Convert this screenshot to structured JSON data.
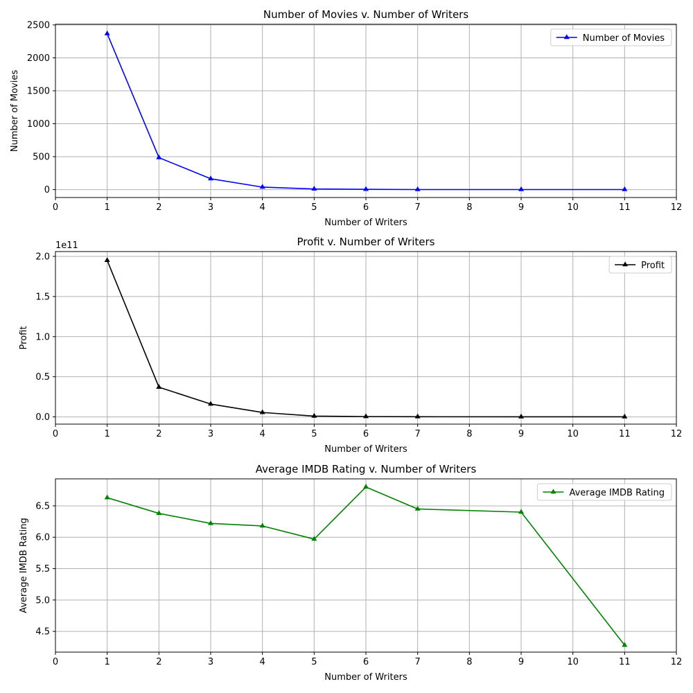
{
  "chart_data": [
    {
      "type": "line",
      "title": "Number of Movies v. Number of Writers",
      "xlabel": "Number of Writers",
      "ylabel": "Number of Movies",
      "xlim": [
        0,
        12
      ],
      "ylim": [
        -120,
        2510
      ],
      "xticks": [
        "0",
        "1",
        "2",
        "3",
        "4",
        "5",
        "6",
        "7",
        "8",
        "9",
        "10",
        "11",
        "12"
      ],
      "yticks": [
        {
          "value": 0,
          "label": "0"
        },
        {
          "value": 500,
          "label": "500"
        },
        {
          "value": 1000,
          "label": "1000"
        },
        {
          "value": 1500,
          "label": "1500"
        },
        {
          "value": 2000,
          "label": "2000"
        },
        {
          "value": 2500,
          "label": "2500"
        }
      ],
      "offset_text": "",
      "grid": true,
      "legend": "top-right",
      "series": [
        {
          "name": "Number of Movies",
          "color": "#0000ff",
          "marker": "triangle-up",
          "x": [
            1,
            2,
            3,
            4,
            5,
            6,
            7,
            9,
            11
          ],
          "y": [
            2367,
            485,
            165,
            38,
            10,
            4,
            1,
            1,
            1
          ]
        }
      ]
    },
    {
      "type": "line",
      "title": "Profit v. Number of Writers",
      "xlabel": "Number of Writers",
      "ylabel": "Profit",
      "xlim": [
        0,
        12
      ],
      "ylim": [
        -0.09,
        2.06
      ],
      "xticks": [
        "0",
        "1",
        "2",
        "3",
        "4",
        "5",
        "6",
        "7",
        "8",
        "9",
        "10",
        "11",
        "12"
      ],
      "yticks": [
        {
          "value": 0,
          "label": "0.0"
        },
        {
          "value": 0.5,
          "label": "0.5"
        },
        {
          "value": 1.0,
          "label": "1.0"
        },
        {
          "value": 1.5,
          "label": "1.5"
        },
        {
          "value": 2.0,
          "label": "2.0"
        }
      ],
      "offset_text": "1e11",
      "grid": true,
      "legend": "top-right",
      "series": [
        {
          "name": "Profit",
          "color": "#000000",
          "marker": "triangle-up",
          "x": [
            1,
            2,
            3,
            4,
            5,
            6,
            7,
            9,
            11
          ],
          "y": [
            1.95,
            0.37,
            0.16,
            0.055,
            0.01,
            0.004,
            0.002,
            0.001,
            0.001
          ]
        }
      ]
    },
    {
      "type": "line",
      "title": "Average IMDB Rating v. Number of Writers",
      "xlabel": "Number of Writers",
      "ylabel": "Average IMDB Rating",
      "xlim": [
        0,
        12
      ],
      "ylim": [
        4.17,
        6.93
      ],
      "xticks": [
        "0",
        "1",
        "2",
        "3",
        "4",
        "5",
        "6",
        "7",
        "8",
        "9",
        "10",
        "11",
        "12"
      ],
      "yticks": [
        {
          "value": 4.5,
          "label": "4.5"
        },
        {
          "value": 5.0,
          "label": "5.0"
        },
        {
          "value": 5.5,
          "label": "5.5"
        },
        {
          "value": 6.0,
          "label": "6.0"
        },
        {
          "value": 6.5,
          "label": "6.5"
        }
      ],
      "offset_text": "",
      "grid": true,
      "legend": "top-right",
      "series": [
        {
          "name": "Average IMDB Rating",
          "color": "#008000",
          "marker": "triangle-up",
          "x": [
            1,
            2,
            3,
            4,
            5,
            6,
            7,
            9,
            11
          ],
          "y": [
            6.63,
            6.38,
            6.22,
            6.18,
            5.97,
            6.8,
            6.45,
            6.4,
            4.28
          ]
        }
      ]
    }
  ]
}
